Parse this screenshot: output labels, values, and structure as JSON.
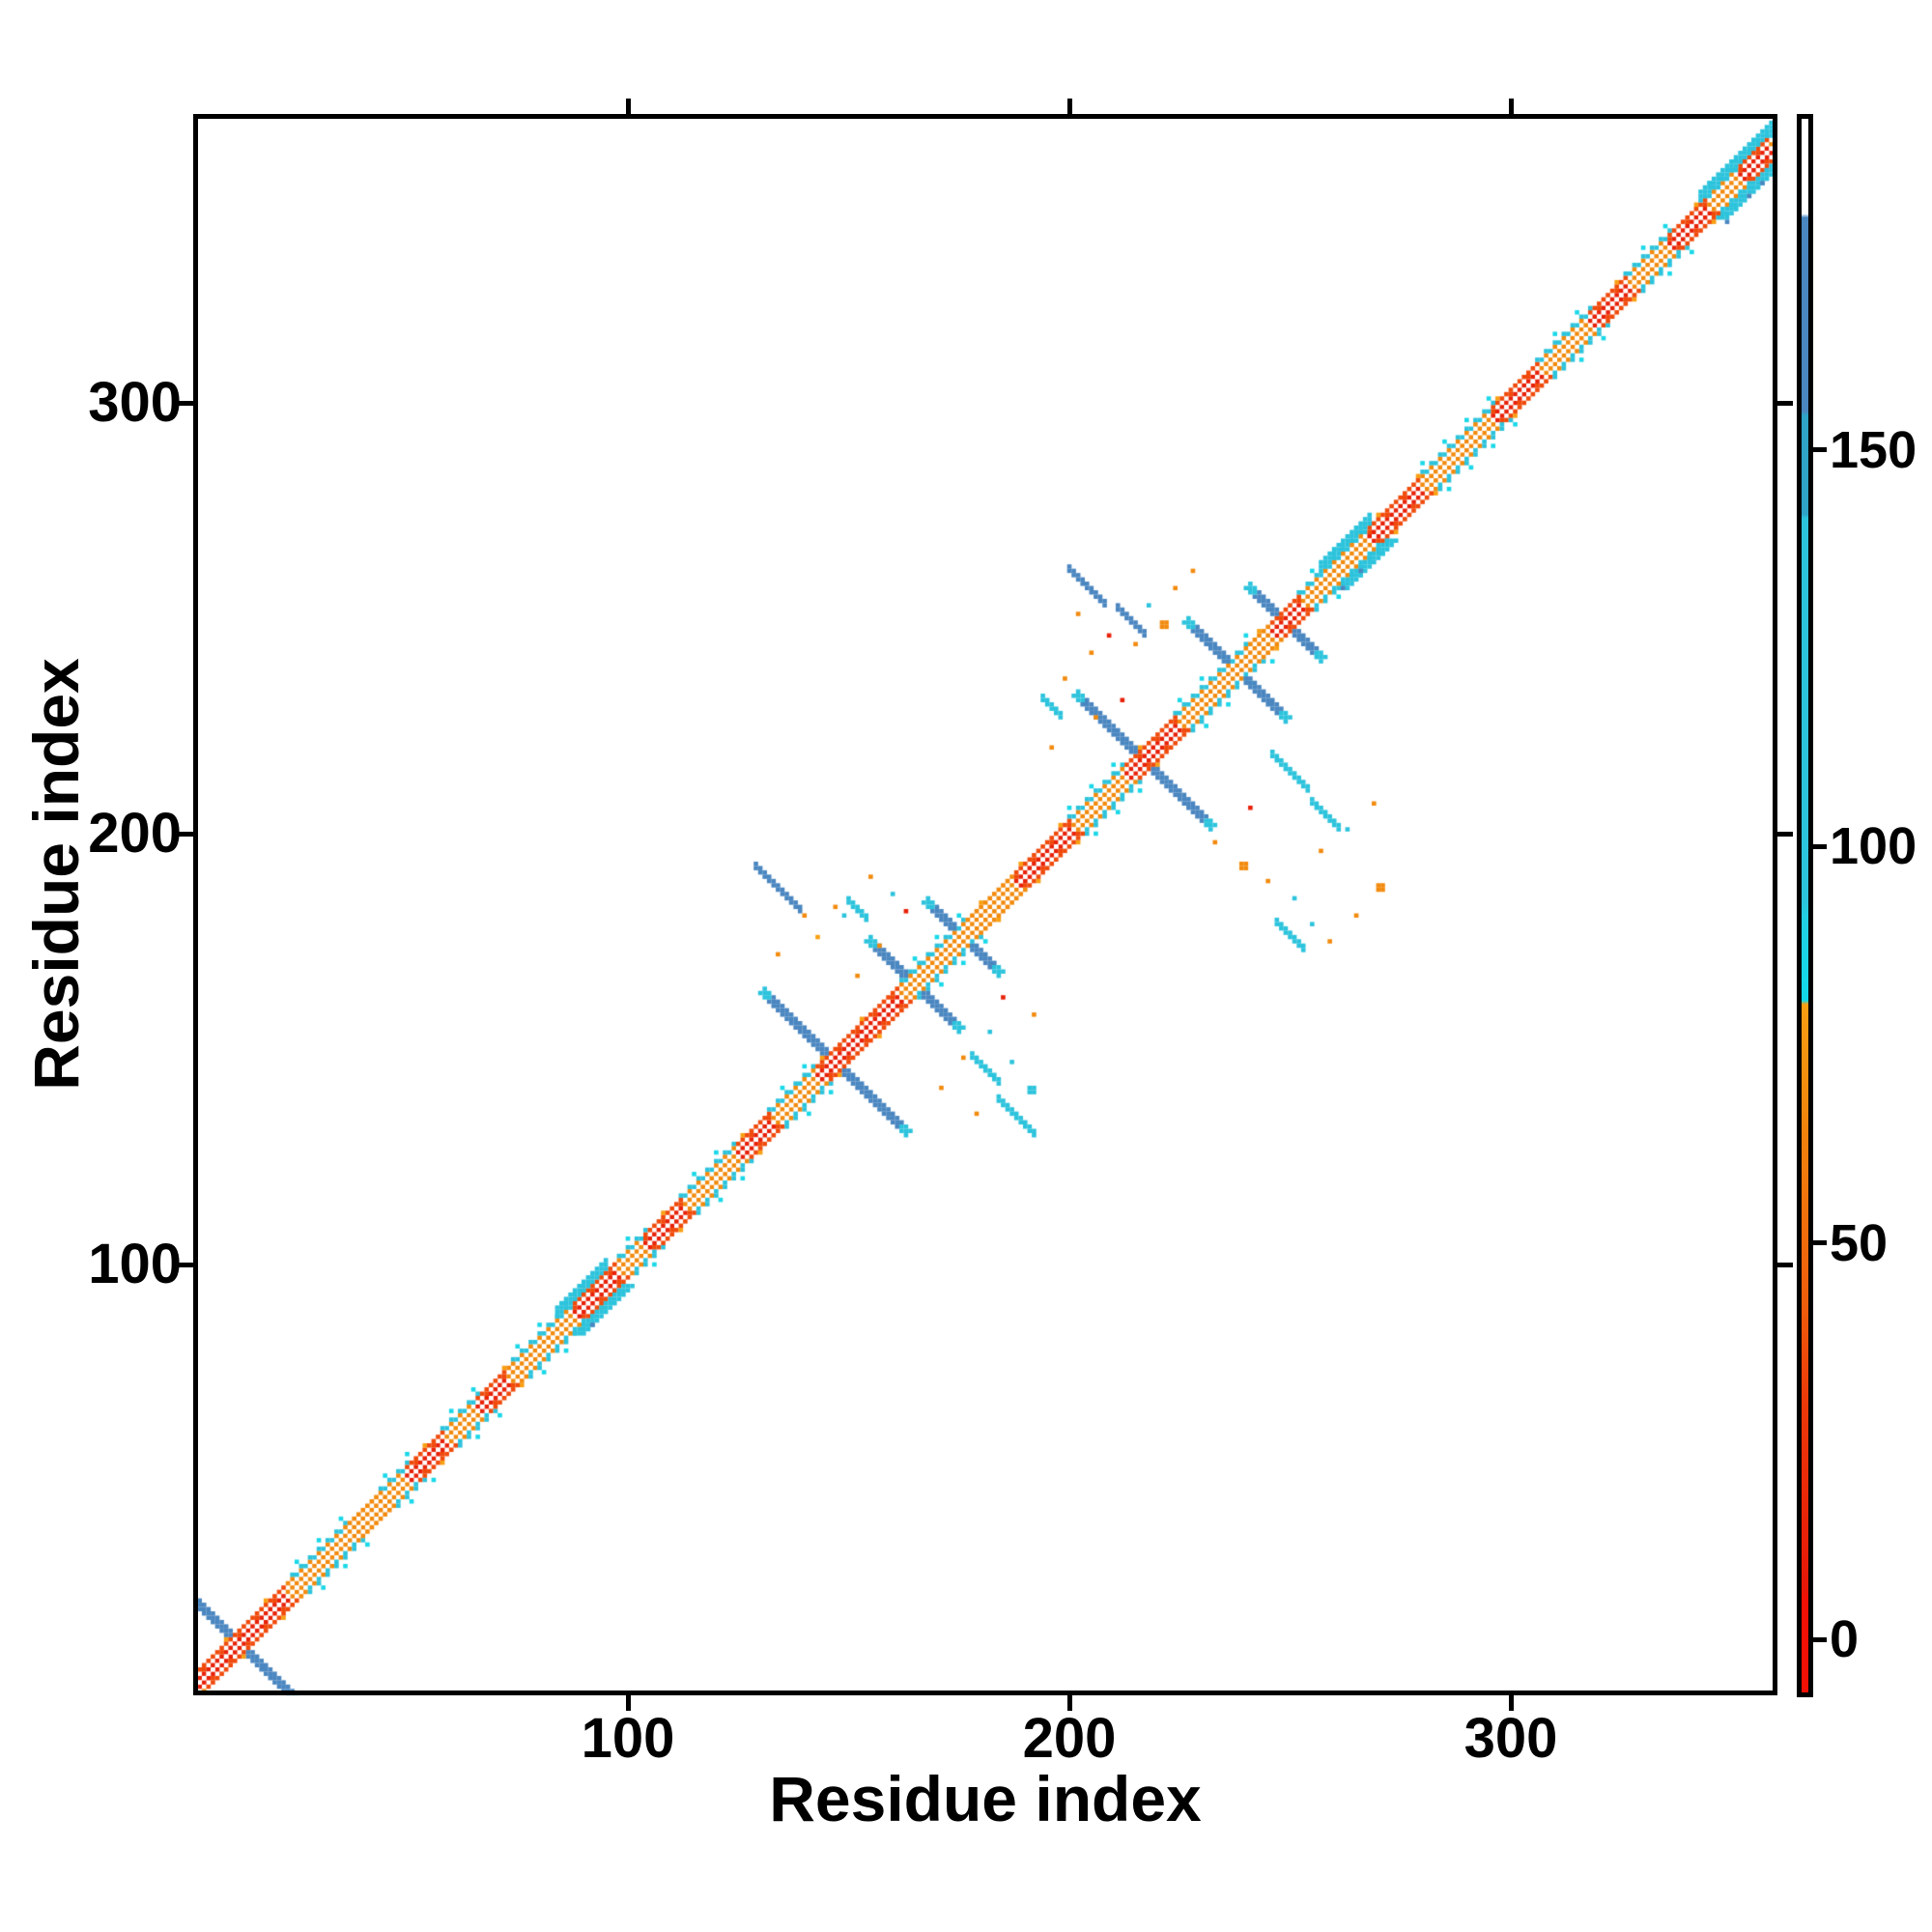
{
  "figure": {
    "xlabel": "Residue index",
    "ylabel": "Residue index"
  },
  "chart_data": {
    "type": "heatmap",
    "title": "",
    "xlabel": "Residue index",
    "ylabel": "Residue index",
    "x_range": [
      1,
      363
    ],
    "y_range": [
      1,
      363
    ],
    "x_ticks": [
      100,
      200,
      300
    ],
    "y_ticks": [
      100,
      200,
      300
    ],
    "grid": false,
    "legend_position": "right-colorbar",
    "colorbar": {
      "ticks": [
        0,
        50,
        100,
        150
      ],
      "value_range": [
        -7,
        192
      ],
      "stops": [
        {
          "v": 192,
          "c": "#ffffff"
        },
        {
          "v": 180,
          "c": "#ffffff"
        },
        {
          "v": 179.5,
          "c": "#4a86c0"
        },
        {
          "v": 155,
          "c": "#4a86c0"
        },
        {
          "v": 154.5,
          "c": "#2fa3c8"
        },
        {
          "v": 142,
          "c": "#2fa3c8"
        },
        {
          "v": 141.5,
          "c": "#2cc3dc"
        },
        {
          "v": 93,
          "c": "#2cc3dc"
        },
        {
          "v": 91,
          "c": "#22cfe2"
        },
        {
          "v": 80.5,
          "c": "#12d8e9"
        },
        {
          "v": 80,
          "c": "#f89f13"
        },
        {
          "v": 68,
          "c": "#f28a0d"
        },
        {
          "v": 42,
          "c": "#ef5d0b"
        },
        {
          "v": 30,
          "c": "#ec3a09"
        },
        {
          "v": 6,
          "c": "#e61708"
        },
        {
          "v": 5,
          "c": "#f21105"
        },
        {
          "v": -7,
          "c": "#f21105"
        }
      ]
    },
    "palette": {
      "red": "#e82008",
      "darkred": "#d8100a",
      "redorange": "#f04a0b",
      "orange": "#f28a0d",
      "lightorange": "#f8a013",
      "cyan": "#2cc3dc",
      "brightcyan": "#19d8e8",
      "teal": "#2fa3c8",
      "steelblue": "#4a86c0",
      "white": "#ffffff"
    },
    "map_features": {
      "residues": 363,
      "diagonal_red_segments": [
        [
          2,
          22
        ],
        [
          50,
          58
        ],
        [
          66,
          72
        ],
        [
          88,
          97
        ],
        [
          104,
          112
        ],
        [
          125,
          132
        ],
        [
          143,
          161
        ],
        [
          188,
          200
        ],
        [
          213,
          224
        ],
        [
          246,
          252
        ],
        [
          268,
          279
        ],
        [
          296,
          306
        ],
        [
          318,
          326
        ],
        [
          336,
          344
        ],
        [
          352,
          358
        ]
      ],
      "diagonal_cyan_segments": [
        [
          24,
          36
        ],
        [
          44,
          50
        ],
        [
          58,
          66
        ],
        [
          74,
          88
        ],
        [
          97,
          104
        ],
        [
          112,
          124
        ],
        [
          132,
          142
        ],
        [
          161,
          176
        ],
        [
          200,
          213
        ],
        [
          224,
          240
        ],
        [
          252,
          268
        ],
        [
          280,
          296
        ],
        [
          306,
          318
        ],
        [
          326,
          336
        ],
        [
          344,
          361
        ]
      ],
      "diagonal_cyan_bulges": [
        [
          84,
          95
        ],
        [
          257,
          268
        ],
        [
          343,
          361
        ]
      ],
      "hairpins": [
        {
          "center": 12,
          "half_len": 13
        },
        {
          "center": 147,
          "half_len": 16
        },
        {
          "center": 165,
          "half_len": 10
        },
        {
          "center": 176,
          "half_len": 8
        },
        {
          "center": 217,
          "half_len": 15
        },
        {
          "center": 238,
          "half_len": 11
        },
        {
          "center": 249,
          "half_len": 8
        }
      ],
      "patches": [
        {
          "x": 134,
          "y": 188,
          "half_len": 5,
          "color": "steelblue"
        },
        {
          "x": 188,
          "y": 135,
          "half_len": 4,
          "color": "cyan"
        },
        {
          "x": 204,
          "y": 258,
          "half_len": 4,
          "color": "steelblue"
        },
        {
          "x": 258,
          "y": 205,
          "half_len": 3,
          "color": "cyan"
        },
        {
          "x": 214,
          "y": 250,
          "half_len": 3,
          "color": "steelblue"
        },
        {
          "x": 250,
          "y": 215,
          "half_len": 4,
          "color": "cyan"
        },
        {
          "x": 250,
          "y": 177,
          "half_len": 3,
          "color": "cyan"
        },
        {
          "x": 181,
          "y": 146,
          "half_len": 3,
          "color": "cyan"
        },
        {
          "x": 152,
          "y": 183,
          "half_len": 2,
          "color": "cyan"
        },
        {
          "x": 196,
          "y": 230,
          "half_len": 2,
          "color": "cyan"
        }
      ],
      "speckles": [
        [
          134,
          172,
          "orange",
          1
        ],
        [
          140,
          181,
          "orange",
          1
        ],
        [
          147,
          183,
          "orange",
          1
        ],
        [
          149,
          181,
          "cyan",
          1
        ],
        [
          143,
          176,
          "lightorange",
          1
        ],
        [
          155,
          190,
          "orange",
          1
        ],
        [
          160,
          186,
          "cyan",
          1
        ],
        [
          152,
          167,
          "orange",
          1
        ],
        [
          157,
          174,
          "orange",
          1
        ],
        [
          163,
          182,
          "red",
          1
        ],
        [
          171,
          141,
          "orange",
          1
        ],
        [
          176,
          148,
          "orange",
          1
        ],
        [
          182,
          154,
          "cyan",
          1
        ],
        [
          187,
          147,
          "cyan",
          1
        ],
        [
          191,
          140,
          "cyan",
          2
        ],
        [
          179,
          135,
          "orange",
          1
        ],
        [
          192,
          158,
          "orange",
          1
        ],
        [
          185,
          162,
          "red",
          1
        ],
        [
          199,
          236,
          "orange",
          1
        ],
        [
          205,
          242,
          "orange",
          1
        ],
        [
          209,
          246,
          "red",
          1
        ],
        [
          215,
          244,
          "orange",
          1
        ],
        [
          221,
          248,
          "orange",
          2
        ],
        [
          224,
          257,
          "orange",
          1
        ],
        [
          218,
          253,
          "cyan",
          1
        ],
        [
          206,
          227,
          "orange",
          1
        ],
        [
          212,
          231,
          "red",
          1
        ],
        [
          228,
          261,
          "orange",
          1
        ],
        [
          196,
          220,
          "orange",
          1
        ],
        [
          202,
          251,
          "orange",
          1
        ],
        [
          233,
          198,
          "orange",
          1
        ],
        [
          239,
          192,
          "orange",
          2
        ],
        [
          245,
          189,
          "orange",
          1
        ],
        [
          251,
          185,
          "cyan",
          1
        ],
        [
          255,
          179,
          "cyan",
          1
        ],
        [
          259,
          175,
          "orange",
          1
        ],
        [
          265,
          181,
          "orange",
          1
        ],
        [
          270,
          187,
          "orange",
          2
        ],
        [
          241,
          206,
          "red",
          1
        ],
        [
          257,
          196,
          "orange",
          1
        ],
        [
          263,
          201,
          "cyan",
          1
        ],
        [
          269,
          207,
          "orange",
          1
        ],
        [
          262,
          257,
          "steelblue",
          1
        ],
        [
          266,
          261,
          "steelblue",
          1
        ],
        [
          349,
          342,
          "steelblue",
          1
        ],
        [
          354,
          348,
          "steelblue",
          1
        ],
        [
          357,
          351,
          "steelblue",
          1
        ],
        [
          92,
          86,
          "steelblue",
          1
        ]
      ]
    }
  }
}
